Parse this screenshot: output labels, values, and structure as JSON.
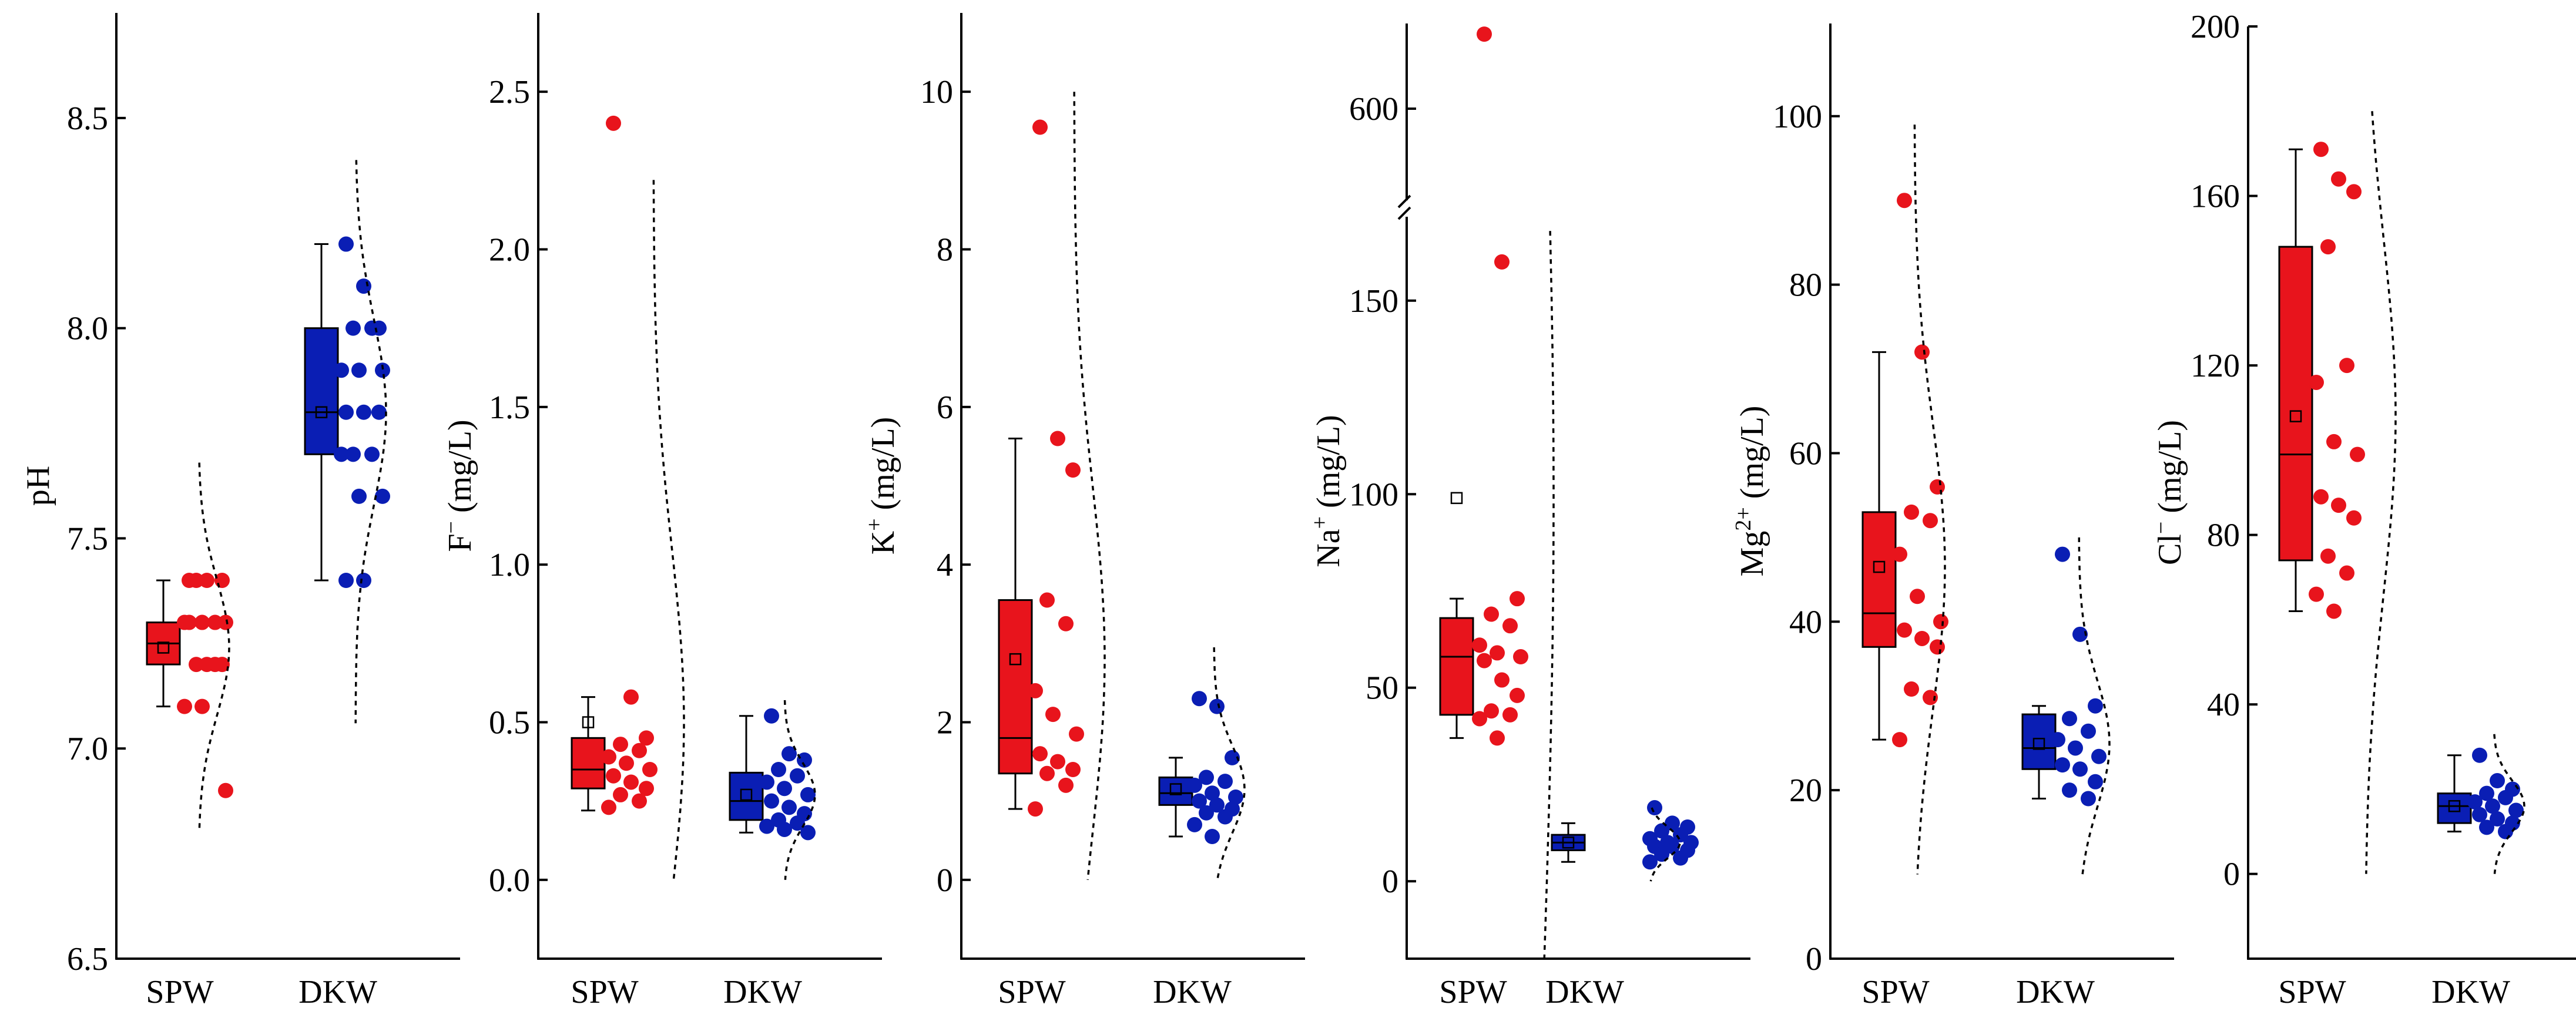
{
  "colors": {
    "spw": "#e8141c",
    "dkw": "#0a1eb4",
    "axis": "#000000"
  },
  "groups": [
    "SPW",
    "DKW"
  ],
  "chart_data": [
    {
      "type": "box",
      "id": "ph",
      "ylabel": {
        "main": "pH",
        "sup": "",
        "tail": ""
      },
      "ylim": [
        6.5,
        8.75
      ],
      "yticks": [
        6.5,
        7.0,
        7.5,
        8.0,
        8.5
      ],
      "tick_labels": [
        "6.5",
        "7.0",
        "7.5",
        "8.0",
        "8.5"
      ],
      "tick_decimals": 1,
      "series": [
        {
          "name": "SPW",
          "box": {
            "q1": 7.2,
            "median": 7.25,
            "q3": 7.3,
            "whisker_low": 7.1,
            "whisker_high": 7.4,
            "mean": 7.24
          },
          "points": [
            7.4,
            7.4,
            7.4,
            7.4,
            7.3,
            7.3,
            7.3,
            7.3,
            7.3,
            7.2,
            7.2,
            7.2,
            7.2,
            7.1,
            7.1,
            6.9
          ],
          "curve": {
            "min": 6.8,
            "max": 7.68,
            "mean": 7.24,
            "sd": 0.16
          }
        },
        {
          "name": "DKW",
          "box": {
            "q1": 7.7,
            "median": 7.8,
            "q3": 8.0,
            "whisker_low": 7.4,
            "whisker_high": 8.2,
            "mean": 7.8
          },
          "points": [
            8.2,
            8.1,
            8.0,
            8.0,
            8.0,
            7.9,
            7.9,
            7.9,
            7.8,
            7.8,
            7.8,
            7.7,
            7.7,
            7.7,
            7.6,
            7.6,
            7.4,
            7.4
          ],
          "curve": {
            "min": 7.06,
            "max": 8.4,
            "mean": 7.8,
            "sd": 0.22
          }
        }
      ]
    },
    {
      "type": "box",
      "id": "fluoride",
      "ylabel": {
        "main": "F",
        "sup": "−",
        "tail": " (mg/L)"
      },
      "ylim": [
        -0.25,
        2.75
      ],
      "yticks": [
        0,
        0.5,
        1.0,
        1.5,
        2.0,
        2.5
      ],
      "tick_labels": [
        "0.0",
        "0.5",
        "1.0",
        "1.5",
        "2.0",
        "2.5"
      ],
      "tick_decimals": 1,
      "series": [
        {
          "name": "SPW",
          "box": {
            "q1": 0.29,
            "median": 0.35,
            "q3": 0.45,
            "whisker_low": 0.22,
            "whisker_high": 0.58,
            "mean": 0.5
          },
          "points": [
            2.4,
            0.58,
            0.45,
            0.43,
            0.41,
            0.39,
            0.37,
            0.35,
            0.33,
            0.31,
            0.29,
            0.27,
            0.25,
            0.23
          ],
          "curve": {
            "min": 0.0,
            "max": 2.22,
            "mean": 0.5,
            "sd": 0.55
          }
        },
        {
          "name": "DKW",
          "box": {
            "q1": 0.19,
            "median": 0.25,
            "q3": 0.34,
            "whisker_low": 0.15,
            "whisker_high": 0.52,
            "mean": 0.27
          },
          "points": [
            0.52,
            0.4,
            0.38,
            0.35,
            0.33,
            0.31,
            0.29,
            0.27,
            0.25,
            0.23,
            0.21,
            0.19,
            0.18,
            0.17,
            0.16,
            0.15
          ],
          "curve": {
            "min": 0.0,
            "max": 0.57,
            "mean": 0.27,
            "sd": 0.1
          }
        }
      ]
    },
    {
      "type": "box",
      "id": "potassium",
      "ylabel": {
        "main": "K",
        "sup": "+",
        "tail": " (mg/L)"
      },
      "ylim": [
        -1,
        11
      ],
      "yticks": [
        0,
        2,
        4,
        6,
        8,
        10
      ],
      "tick_labels": [
        "0",
        "2",
        "4",
        "6",
        "8",
        "10"
      ],
      "tick_decimals": 0,
      "series": [
        {
          "name": "SPW",
          "box": {
            "q1": 1.35,
            "median": 1.8,
            "q3": 3.55,
            "whisker_low": 0.9,
            "whisker_high": 5.6,
            "mean": 2.8
          },
          "points": [
            9.55,
            5.6,
            5.2,
            3.55,
            3.25,
            2.4,
            2.1,
            1.85,
            1.6,
            1.5,
            1.4,
            1.35,
            1.2,
            0.9
          ],
          "curve": {
            "min": 0.0,
            "max": 10.0,
            "mean": 2.8,
            "sd": 2.2
          }
        },
        {
          "name": "DKW",
          "box": {
            "q1": 0.95,
            "median": 1.1,
            "q3": 1.3,
            "whisker_low": 0.55,
            "whisker_high": 1.55,
            "mean": 1.15
          },
          "points": [
            2.3,
            2.2,
            1.55,
            1.3,
            1.25,
            1.2,
            1.1,
            1.05,
            1.0,
            0.95,
            0.9,
            0.85,
            0.8,
            0.7,
            0.55
          ],
          "curve": {
            "min": 0.0,
            "max": 2.95,
            "mean": 1.15,
            "sd": 0.55
          }
        }
      ]
    },
    {
      "type": "box",
      "id": "sodium",
      "ylabel": {
        "main": "Na",
        "sup": "+",
        "tail": " (mg/L)"
      },
      "broken_axis": true,
      "ylim": [
        -20,
        170
      ],
      "upper_ylim": [
        560,
        640
      ],
      "yticks": [
        0,
        50,
        100,
        150
      ],
      "tick_labels": [
        "0",
        "50",
        "100",
        "150"
      ],
      "upper_yticks": [
        600
      ],
      "upper_tick_labels": [
        "600"
      ],
      "tick_decimals": 0,
      "series": [
        {
          "name": "SPW",
          "box": {
            "q1": 43,
            "median": 58,
            "q3": 68,
            "whisker_low": 37,
            "whisker_high": 73,
            "mean": 99
          },
          "points": [
            635,
            160,
            73,
            69,
            66,
            61,
            59,
            58,
            57,
            52,
            48,
            44,
            43,
            42,
            37
          ],
          "curve": {
            "min": -20,
            "max": 168,
            "mean": 99,
            "sd": 140
          }
        },
        {
          "name": "DKW",
          "box": {
            "q1": 8,
            "median": 10,
            "q3": 12,
            "whisker_low": 5,
            "whisker_high": 15,
            "mean": 10
          },
          "points": [
            19,
            15,
            14,
            13,
            12,
            11,
            10,
            10,
            9,
            9,
            8,
            7,
            6,
            5
          ],
          "curve": {
            "min": 0,
            "max": 19,
            "mean": 10,
            "sd": 4
          }
        }
      ]
    },
    {
      "type": "box",
      "id": "magnesium",
      "ylabel": {
        "main": "Mg",
        "sup": "2+",
        "tail": " (mg/L)"
      },
      "ylim": [
        0,
        111
      ],
      "yticks": [
        0,
        20,
        40,
        60,
        80,
        100
      ],
      "tick_labels": [
        "0",
        "20",
        "40",
        "60",
        "80",
        "100"
      ],
      "tick_decimals": 0,
      "series": [
        {
          "name": "SPW",
          "box": {
            "q1": 37,
            "median": 41,
            "q3": 53,
            "whisker_low": 26,
            "whisker_high": 72,
            "mean": 46.5
          },
          "points": [
            90,
            72,
            56,
            53,
            52,
            48,
            43,
            40,
            39,
            38,
            37,
            32,
            31,
            26
          ],
          "curve": {
            "min": 10,
            "max": 99,
            "mean": 46.5,
            "sd": 17
          }
        },
        {
          "name": "DKW",
          "box": {
            "q1": 22.5,
            "median": 25,
            "q3": 29,
            "whisker_low": 19,
            "whisker_high": 30,
            "mean": 25.5
          },
          "points": [
            48,
            38.5,
            30,
            28.5,
            27,
            26,
            25,
            24,
            23,
            22.5,
            21,
            20,
            19
          ],
          "curve": {
            "min": 10,
            "max": 50,
            "mean": 25.5,
            "sd": 7.5
          }
        }
      ]
    },
    {
      "type": "box",
      "id": "chloride",
      "ylabel": {
        "main": "Cl",
        "sup": "−",
        "tail": " (mg/L)"
      },
      "ylim": [
        -20,
        200
      ],
      "yticks": [
        0,
        40,
        80,
        120,
        160,
        200
      ],
      "tick_labels": [
        "0",
        "40",
        "80",
        "120",
        "160",
        "200"
      ],
      "tick_decimals": 0,
      "series": [
        {
          "name": "SPW",
          "box": {
            "q1": 74,
            "median": 99,
            "q3": 148,
            "whisker_low": 62,
            "whisker_high": 171,
            "mean": 108
          },
          "points": [
            171,
            164,
            161,
            148,
            120,
            116,
            102,
            99,
            89,
            87,
            84,
            75,
            71,
            66,
            62
          ],
          "curve": {
            "min": 0,
            "max": 180,
            "mean": 108,
            "sd": 42
          }
        },
        {
          "name": "DKW",
          "box": {
            "q1": 12,
            "median": 16,
            "q3": 19,
            "whisker_low": 10,
            "whisker_high": 28,
            "mean": 16
          },
          "points": [
            28,
            22,
            20,
            19,
            18,
            17,
            16,
            15,
            14,
            13,
            12,
            11,
            10
          ],
          "curve": {
            "min": 0,
            "max": 33,
            "mean": 16,
            "sd": 6
          }
        }
      ]
    }
  ]
}
